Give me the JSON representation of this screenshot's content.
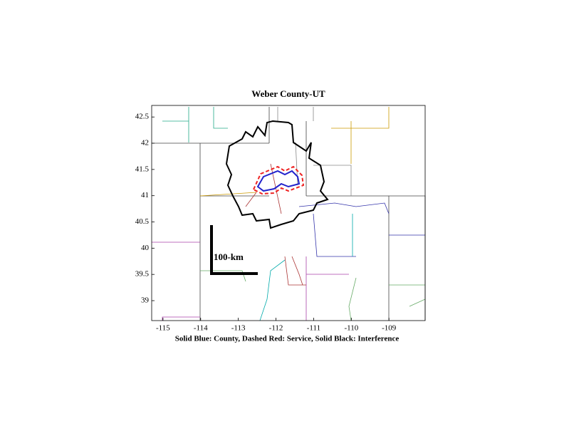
{
  "chart_data": {
    "type": "map",
    "title": "Weber County-UT",
    "xlabel": "Solid Blue: County, Dashed Red: Service, Solid Black: Interference",
    "scale_label": "100-km",
    "xlim": [
      -115.3,
      -108.04
    ],
    "ylim": [
      38.62,
      42.72
    ],
    "xticks": [
      -115,
      -114,
      -113,
      -112,
      -111,
      -110,
      -109
    ],
    "yticks": [
      39,
      39.5,
      40,
      40.5,
      41,
      41.5,
      42,
      42.5
    ]
  }
}
